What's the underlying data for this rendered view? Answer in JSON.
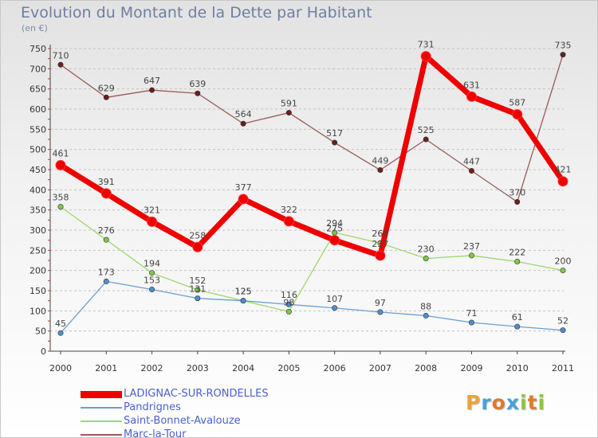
{
  "header": {
    "title": "Evolution du Montant de la Dette par Habitant",
    "subtitle": "(en €)"
  },
  "logo": {
    "letters": [
      "P",
      "r",
      "o",
      "x",
      "i",
      "t",
      "i"
    ],
    "colors": [
      "#e8a33a",
      "#4aa0d8",
      "#e07a2a",
      "#4aa0d8",
      "#8cc63f",
      "#e07a2a",
      "#8cc63f"
    ]
  },
  "chart_data": {
    "type": "line",
    "title": "Evolution du Montant de la Dette par Habitant",
    "ylabel": "(en €)",
    "xlabel": "",
    "x": [
      "2000",
      "2001",
      "2002",
      "2003",
      "2004",
      "2005",
      "2006",
      "2007",
      "2008",
      "2009",
      "2010",
      "2011"
    ],
    "ylim": [
      0,
      750
    ],
    "yticks": [
      0,
      50,
      100,
      150,
      200,
      250,
      300,
      350,
      400,
      450,
      500,
      550,
      600,
      650,
      700,
      750
    ],
    "grid": "horizontal dashed",
    "legend_position": "bottom-left",
    "series": [
      {
        "name": "LADIGNAC-SUR-RONDELLES",
        "color": "#ee0000",
        "dot": "#ee0000",
        "width": 7,
        "radius": 6,
        "values": [
          461,
          391,
          321,
          258,
          377,
          322,
          275,
          237,
          731,
          631,
          587,
          421
        ]
      },
      {
        "name": "Pandrignes",
        "color": "#6a9fd0",
        "dot": "#4f8fd0",
        "width": 1.3,
        "radius": 3.2,
        "values": [
          45,
          173,
          153,
          131,
          125,
          116,
          107,
          97,
          88,
          71,
          61,
          52
        ]
      },
      {
        "name": "Saint-Bonnet-Avalouze",
        "color": "#9ed86a",
        "dot": "#7ec84a",
        "width": 1.3,
        "radius": 3.2,
        "values": [
          358,
          276,
          194,
          152,
          125,
          98,
          294,
          268,
          230,
          237,
          222,
          200
        ]
      },
      {
        "name": "Marc-la-Tour",
        "color": "#9a5a5a",
        "dot": "#6b1f1f",
        "width": 1.3,
        "radius": 3.2,
        "values": [
          710,
          629,
          647,
          639,
          564,
          591,
          517,
          449,
          525,
          447,
          370,
          735
        ]
      }
    ],
    "data_labels": [
      [
        "461",
        "391",
        "321",
        "258",
        "377",
        "322",
        "275",
        "237",
        "731",
        "631",
        "587",
        "421"
      ],
      [
        "45",
        "173",
        "153",
        "131",
        "125",
        "116",
        "107",
        "97",
        "88",
        "71",
        "61",
        "52"
      ],
      [
        "358",
        "276",
        "194",
        "152",
        "125",
        "98",
        "294",
        "268",
        "230",
        "237",
        "222",
        "200"
      ],
      [
        "710",
        "629",
        "647",
        "639",
        "564",
        "591",
        "517",
        "449",
        "525",
        "447",
        "370",
        "735"
      ]
    ]
  }
}
